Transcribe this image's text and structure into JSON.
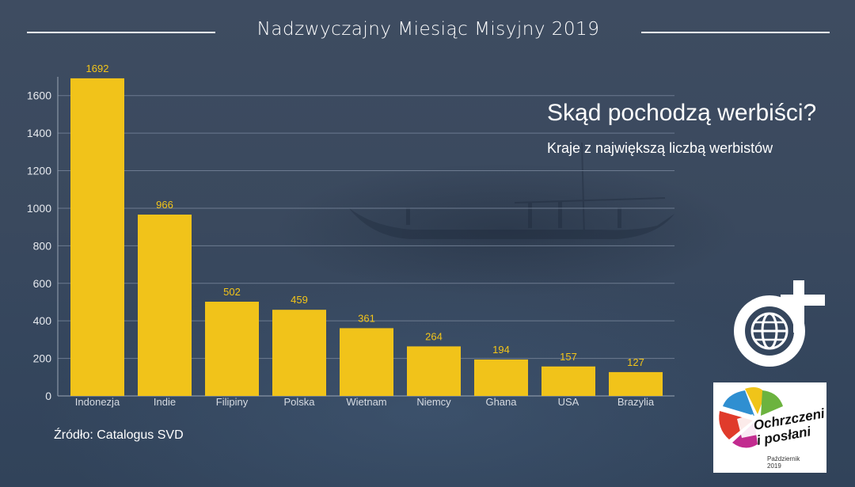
{
  "header": {
    "title": "Nadzwyczajny Miesiąc Misyjny 2019"
  },
  "heading": "Skąd pochodzą werbiści?",
  "subheading": "Kraje z największą liczbą werbistów",
  "source": "Źródło: Catalogus SVD",
  "logos": {
    "svd": "svd-globe-cross-logo",
    "campaign": {
      "icon": "multicolor-cross-logo",
      "line1": "Ochrzczeni",
      "line2": "i posłani",
      "line3": "Październik",
      "line4": "2019"
    }
  },
  "chart_data": {
    "type": "bar",
    "categories": [
      "Indonezja",
      "Indie",
      "Filipiny",
      "Polska",
      "Wietnam",
      "Niemcy",
      "Ghana",
      "USA",
      "Brazylia"
    ],
    "values": [
      1692,
      966,
      502,
      459,
      361,
      264,
      194,
      157,
      127
    ],
    "ylim": [
      0,
      1700
    ],
    "yticks": [
      0,
      200,
      400,
      600,
      800,
      1000,
      1200,
      1400,
      1600
    ],
    "grid": true,
    "colors": {
      "bar": "#f1c31a",
      "label": "#f4c518"
    }
  }
}
